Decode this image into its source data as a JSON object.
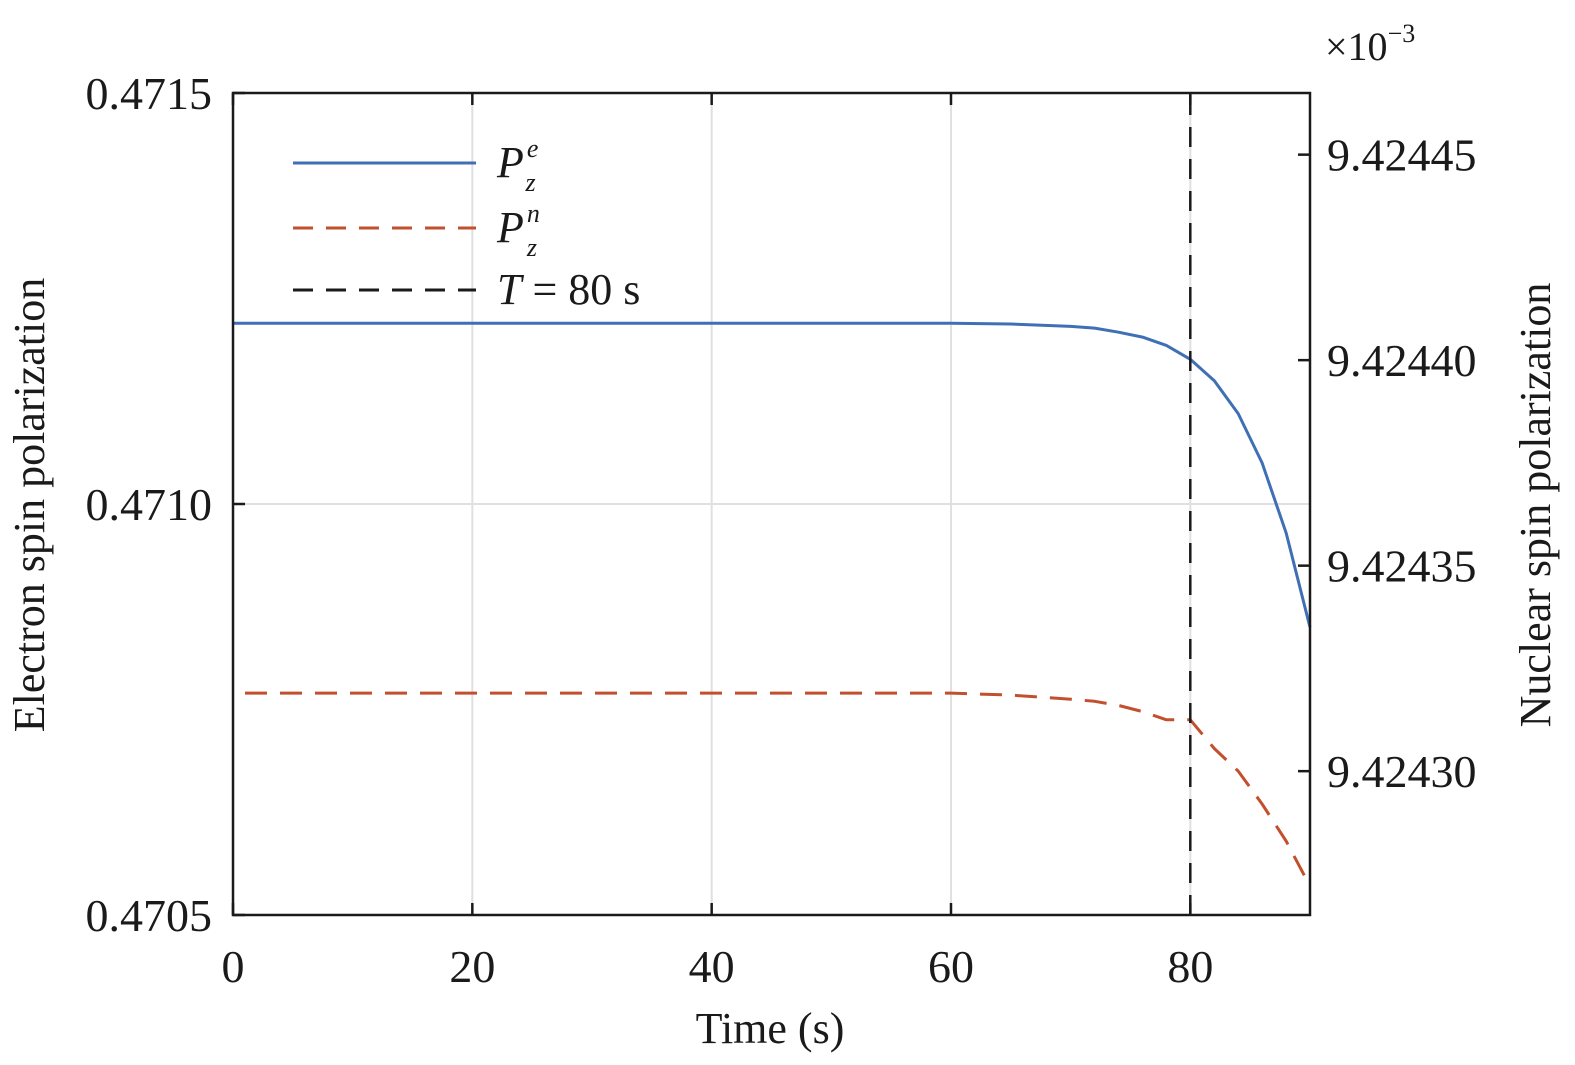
{
  "chart_data": {
    "type": "line",
    "xlabel": "Time (s)",
    "ylabel_left": "Electron spin polarization",
    "ylabel_right": "Nuclear spin polarization",
    "right_axis_multiplier": "×10",
    "right_axis_exponent": "−3",
    "xlim": [
      0,
      90
    ],
    "ylim_left": [
      0.4705,
      0.4715
    ],
    "ylim_right": [
      9.424265,
      9.424465
    ],
    "x_ticks": [
      0,
      20,
      40,
      60,
      80
    ],
    "x_tick_labels": [
      "0",
      "20",
      "40",
      "60",
      "80"
    ],
    "y_left_ticks": [
      0.4705,
      0.471,
      0.4715
    ],
    "y_left_tick_labels": [
      "0.4705",
      "0.4710",
      "0.4715"
    ],
    "y_right_ticks": [
      9.4243,
      9.42435,
      9.4244,
      9.42445
    ],
    "y_right_tick_labels": [
      "9.42430",
      "9.42435",
      "9.42440",
      "9.42445"
    ],
    "grid": true,
    "legend_position": "top-left",
    "series": [
      {
        "name": "P_z^e",
        "axis": "left",
        "style": "solid",
        "color": "#3f6fb5",
        "x": [
          0,
          10,
          20,
          30,
          40,
          50,
          60,
          65,
          70,
          72,
          74,
          76,
          78,
          80,
          82,
          84,
          86,
          88,
          90
        ],
        "y": [
          0.47122,
          0.47122,
          0.47122,
          0.47122,
          0.47122,
          0.47122,
          0.47122,
          0.471219,
          0.471216,
          0.471214,
          0.471209,
          0.471203,
          0.471193,
          0.471176,
          0.47115,
          0.47111,
          0.47105,
          0.470965,
          0.47085
        ]
      },
      {
        "name": "P_z^n",
        "axis": "right",
        "style": "dashed",
        "color": "#c2502e",
        "x": [
          1,
          10,
          20,
          30,
          40,
          50,
          60,
          65,
          70,
          72,
          74,
          76,
          78,
          80,
          82,
          84,
          86,
          88,
          90
        ],
        "y": [
          9.424319,
          9.424319,
          9.424319,
          9.424319,
          9.424319,
          9.424319,
          9.424319,
          9.4243185,
          9.4243175,
          9.424317,
          9.424316,
          9.4243145,
          9.4243125,
          9.4243125,
          9.4243055,
          9.4243,
          9.424292,
          9.424283,
          9.424272
        ]
      },
      {
        "name": "T = 80 s",
        "axis": "left",
        "style": "dashed",
        "color": "#1a1a1a",
        "x": [
          80,
          80
        ],
        "y": [
          0.4705,
          0.4715
        ]
      }
    ]
  },
  "legend": {
    "items": [
      {
        "main": "P",
        "sub": "z",
        "sup": "e",
        "color": "#3f6fb5",
        "style": "solid"
      },
      {
        "main": "P",
        "sub": "z",
        "sup": "n",
        "color": "#c2502e",
        "style": "dashed"
      },
      {
        "main": "T",
        "rest": " = 80 s",
        "color": "#1a1a1a",
        "style": "dashed"
      }
    ]
  }
}
